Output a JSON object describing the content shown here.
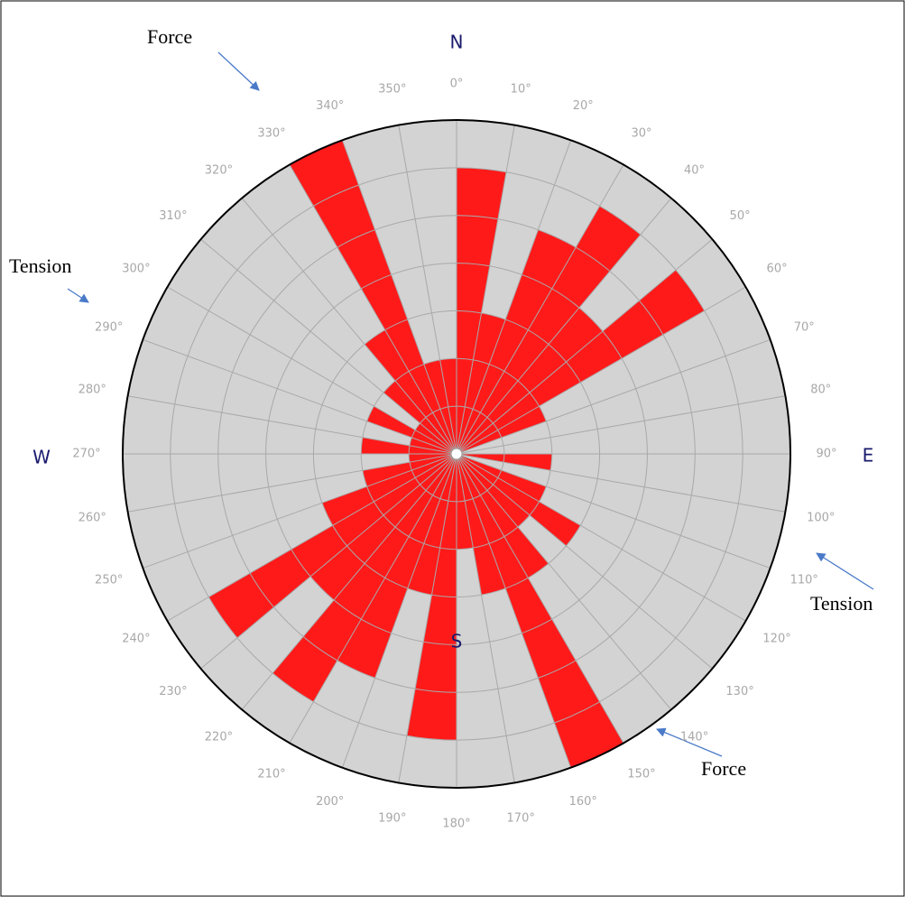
{
  "chart_data": {
    "type": "rose",
    "values": [
      6,
      3,
      5,
      6,
      4,
      6,
      2,
      0,
      0,
      2,
      0,
      2,
      3,
      2,
      3,
      7,
      3,
      2,
      6,
      3,
      5,
      6,
      4,
      6,
      3,
      2,
      1,
      2,
      1,
      2,
      1,
      2,
      3,
      7,
      2,
      2
    ],
    "color": "#ff1a1a",
    "rlim": [
      0,
      7
    ],
    "rticks": [
      1,
      2,
      3,
      4,
      5,
      6,
      7
    ],
    "theta_ticks": [
      {
        "value": 0,
        "label": "0°"
      },
      {
        "value": 10,
        "label": "10°"
      },
      {
        "value": 20,
        "label": "20°"
      },
      {
        "value": 30,
        "label": "30°"
      },
      {
        "value": 40,
        "label": "40°"
      },
      {
        "value": 50,
        "label": "50°"
      },
      {
        "value": 60,
        "label": "60°"
      },
      {
        "value": 70,
        "label": "70°"
      },
      {
        "value": 80,
        "label": "80°"
      },
      {
        "value": 90,
        "label": "90°"
      },
      {
        "value": 100,
        "label": "100°"
      },
      {
        "value": 110,
        "label": "110°"
      },
      {
        "value": 120,
        "label": "120°"
      },
      {
        "value": 130,
        "label": "130°"
      },
      {
        "value": 140,
        "label": "140°"
      },
      {
        "value": 150,
        "label": "150°"
      },
      {
        "value": 160,
        "label": "160°"
      },
      {
        "value": 170,
        "label": "170°"
      },
      {
        "value": 180,
        "label": "180°"
      },
      {
        "value": 190,
        "label": "190°"
      },
      {
        "value": 200,
        "label": "200°"
      },
      {
        "value": 210,
        "label": "210°"
      },
      {
        "value": 220,
        "label": "220°"
      },
      {
        "value": 230,
        "label": "230°"
      },
      {
        "value": 240,
        "label": "240°"
      },
      {
        "value": 250,
        "label": "250°"
      },
      {
        "value": 260,
        "label": "260°"
      },
      {
        "value": 270,
        "label": "270°"
      },
      {
        "value": 280,
        "label": "280°"
      },
      {
        "value": 290,
        "label": "290°"
      },
      {
        "value": 300,
        "label": "300°"
      },
      {
        "value": 310,
        "label": "310°"
      },
      {
        "value": 320,
        "label": "320°"
      },
      {
        "value": 330,
        "label": "330°"
      },
      {
        "value": 340,
        "label": "340°"
      },
      {
        "value": 350,
        "label": "350°"
      }
    ],
    "compass": {
      "north": "N",
      "east": "E",
      "south": "S",
      "west": "W"
    },
    "annotations": [
      "Force",
      "Tension",
      "Tension",
      "Force"
    ]
  }
}
